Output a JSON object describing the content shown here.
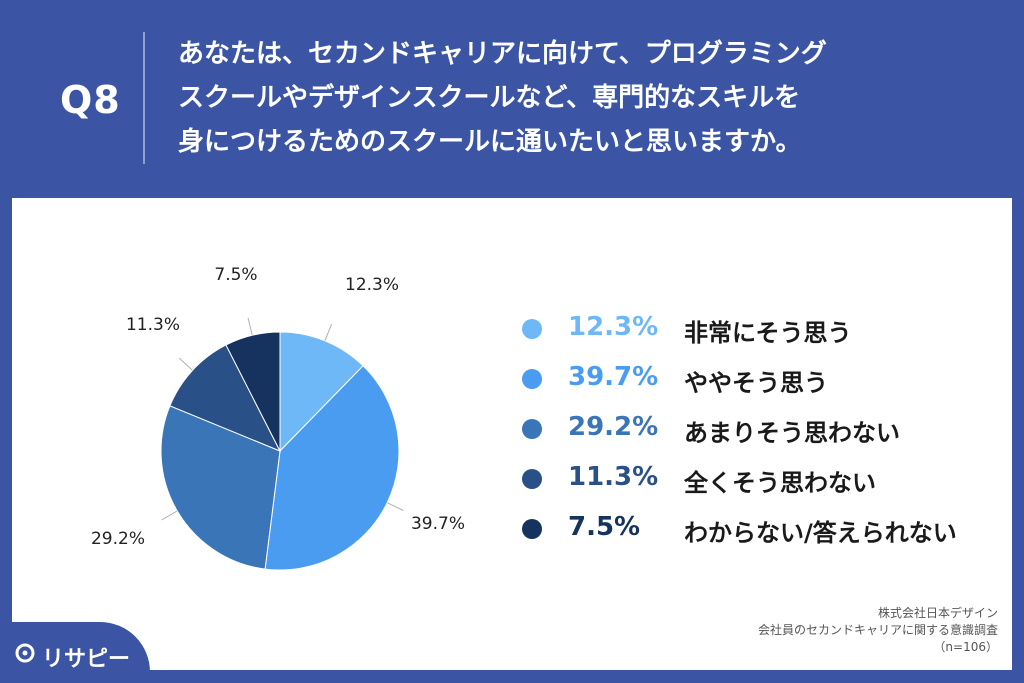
{
  "header": {
    "q_number": "Q8",
    "question_lines": [
      "あなたは、セカンドキャリアに向けて、プログラミング",
      "スクールやデザインスクールなど、専門的なスキルを",
      "身につけるためのスクールに通いたいと思いますか。"
    ]
  },
  "chart_data": {
    "type": "pie",
    "categories": [
      "非常にそう思う",
      "ややそう思う",
      "あまりそう思わない",
      "全くそう思わない",
      "わからない/答えられない"
    ],
    "values": [
      12.3,
      39.7,
      29.2,
      11.3,
      7.5
    ],
    "labels": [
      "12.3%",
      "39.7%",
      "29.2%",
      "11.3%",
      "7.5%"
    ],
    "colors": [
      "#6fb8f7",
      "#4a9cf0",
      "#3a75b8",
      "#2a5088",
      "#16325e"
    ],
    "start_angle": "12 o'clock, clockwise",
    "legend_position": "right"
  },
  "legend": [
    {
      "pct": "12.3%",
      "label": "非常にそう思う",
      "color": "#6fb8f7"
    },
    {
      "pct": "39.7%",
      "label": "ややそう思う",
      "color": "#4a9cf0"
    },
    {
      "pct": "29.2%",
      "label": "あまりそう思わない",
      "color": "#3a75b8"
    },
    {
      "pct": "11.3%",
      "label": "全くそう思わない",
      "color": "#2a5088"
    },
    {
      "pct": "7.5%",
      "label": "わからない/答えられない",
      "color": "#16325e"
    }
  ],
  "source": {
    "line1": "株式会社日本デザイン",
    "line2": "会社員のセカンドキャリアに関する意識調査",
    "line3": "（n=106）"
  },
  "brand": {
    "name": "リサピー",
    "color": "#3b55a4"
  }
}
